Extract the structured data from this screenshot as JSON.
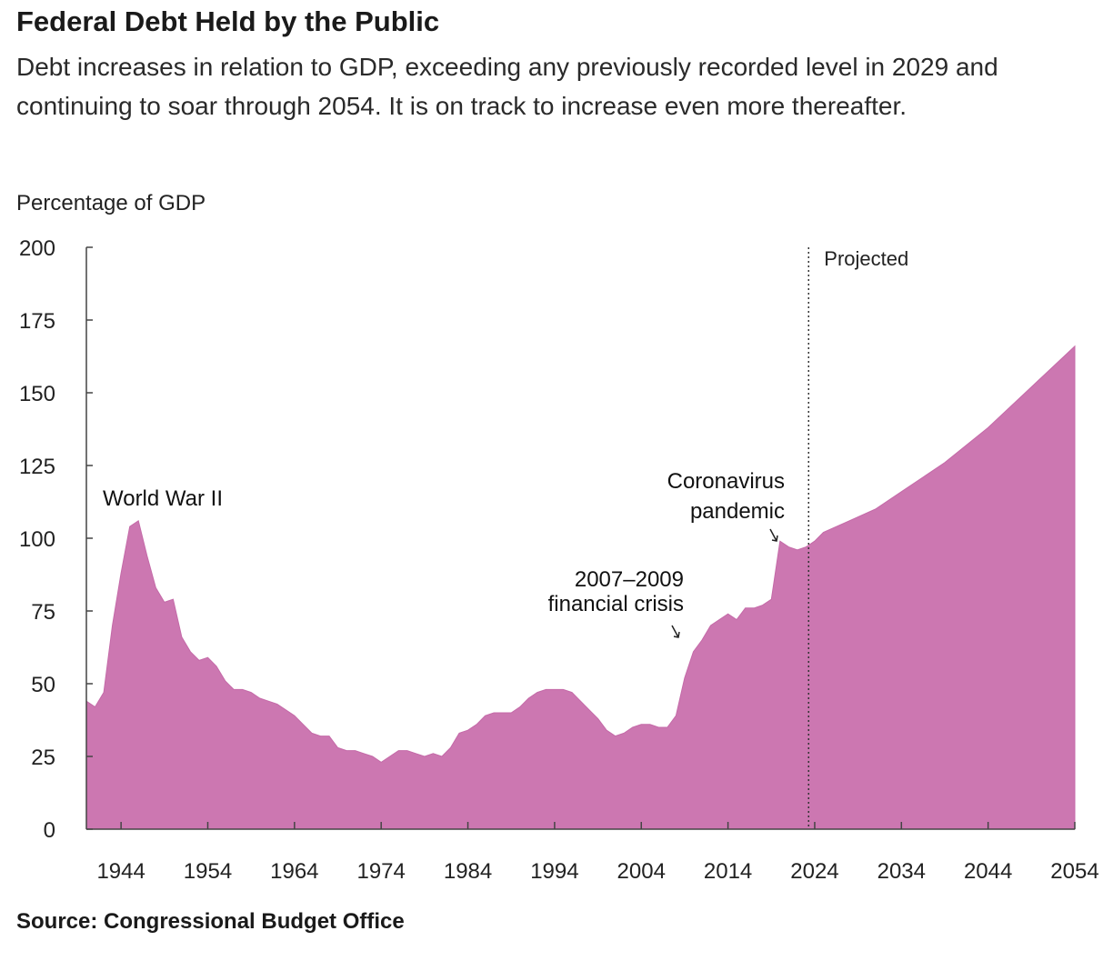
{
  "title": "Federal Debt Held by the Public",
  "subtitle": "Debt increases in relation to GDP, exceeding any previously recorded level in 2029 and continuing to soar through 2054. It is on track to increase even more thereafter.",
  "source": "Source: Congressional Budget Office",
  "chart_data": {
    "type": "area",
    "ylabel": "Percentage of GDP",
    "xlabel": "",
    "ylim": [
      0,
      200
    ],
    "xlim": [
      1940,
      2054
    ],
    "yticks": [
      0,
      25,
      50,
      75,
      100,
      125,
      150,
      175,
      200
    ],
    "xticks": [
      1944,
      1954,
      1964,
      1974,
      1984,
      1994,
      2004,
      2014,
      2024,
      2034,
      2044,
      2054
    ],
    "color": "#cc77b1",
    "projection_start": 2023.3,
    "projection_label": "Projected",
    "annotations": [
      {
        "lines": [
          "World War II"
        ],
        "year": 1945
      },
      {
        "lines": [
          "2007–2009",
          "financial crisis"
        ],
        "year": 2009
      },
      {
        "lines": [
          "Coronavirus",
          "pandemic"
        ],
        "year": 2020
      }
    ],
    "x": [
      1940,
      1941,
      1942,
      1943,
      1944,
      1945,
      1946,
      1947,
      1948,
      1949,
      1950,
      1951,
      1952,
      1953,
      1954,
      1955,
      1956,
      1957,
      1958,
      1959,
      1960,
      1961,
      1962,
      1963,
      1964,
      1965,
      1966,
      1967,
      1968,
      1969,
      1970,
      1971,
      1972,
      1973,
      1974,
      1975,
      1976,
      1977,
      1978,
      1979,
      1980,
      1981,
      1982,
      1983,
      1984,
      1985,
      1986,
      1987,
      1988,
      1989,
      1990,
      1991,
      1992,
      1993,
      1994,
      1995,
      1996,
      1997,
      1998,
      1999,
      2000,
      2001,
      2002,
      2003,
      2004,
      2005,
      2006,
      2007,
      2008,
      2009,
      2010,
      2011,
      2012,
      2013,
      2014,
      2015,
      2016,
      2017,
      2018,
      2019,
      2020,
      2021,
      2022,
      2023,
      2024,
      2025,
      2028,
      2031,
      2034,
      2039,
      2044,
      2049,
      2054
    ],
    "values": [
      44,
      42,
      47,
      70,
      88,
      104,
      106,
      94,
      83,
      78,
      79,
      66,
      61,
      58,
      59,
      56,
      51,
      48,
      48,
      47,
      45,
      44,
      43,
      41,
      39,
      36,
      33,
      32,
      32,
      28,
      27,
      27,
      26,
      25,
      23,
      25,
      27,
      27,
      26,
      25,
      26,
      25,
      28,
      33,
      34,
      36,
      39,
      40,
      40,
      40,
      42,
      45,
      47,
      48,
      48,
      48,
      47,
      44,
      41,
      38,
      34,
      32,
      33,
      35,
      36,
      36,
      35,
      35,
      39,
      52,
      61,
      65,
      70,
      72,
      74,
      72,
      76,
      76,
      77,
      79,
      99,
      97,
      96,
      97,
      99,
      102,
      106,
      110,
      116,
      126,
      138,
      152,
      166
    ]
  }
}
